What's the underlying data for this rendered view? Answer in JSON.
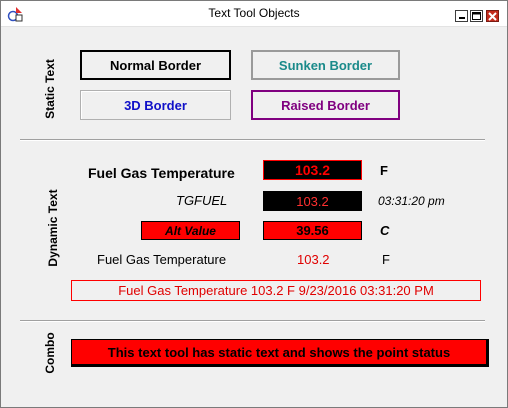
{
  "window": {
    "title": "Text Tool Objects"
  },
  "sections": {
    "static": "Static Text",
    "dynamic": "Dynamic Text",
    "combo": "Combo"
  },
  "static_text": {
    "normal_border": "Normal Border",
    "sunken_border": "Sunken Border",
    "three_d_border": "3D Border",
    "raised_border": "Raised Border"
  },
  "dynamic_text": {
    "row1": {
      "label": "Fuel Gas Temperature",
      "value": "103.2",
      "unit": "F"
    },
    "row2": {
      "label": "TGFUEL",
      "value": "103.2",
      "time": "03:31:20 pm"
    },
    "row3": {
      "label": "Alt Value",
      "value": "39.56",
      "unit": "C"
    },
    "row4": {
      "label": "Fuel Gas Temperature",
      "value": "103.2",
      "unit": "F"
    },
    "summary": "Fuel Gas Temperature 103.2 F 9/23/2016 03:31:20 PM"
  },
  "combo": {
    "text": "This text tool has static text and shows the point status"
  },
  "colors": {
    "accent_red": "#ff0000",
    "black": "#000000",
    "teal": "#1a8a8a",
    "blue": "#1010c8",
    "purple": "#800080"
  }
}
